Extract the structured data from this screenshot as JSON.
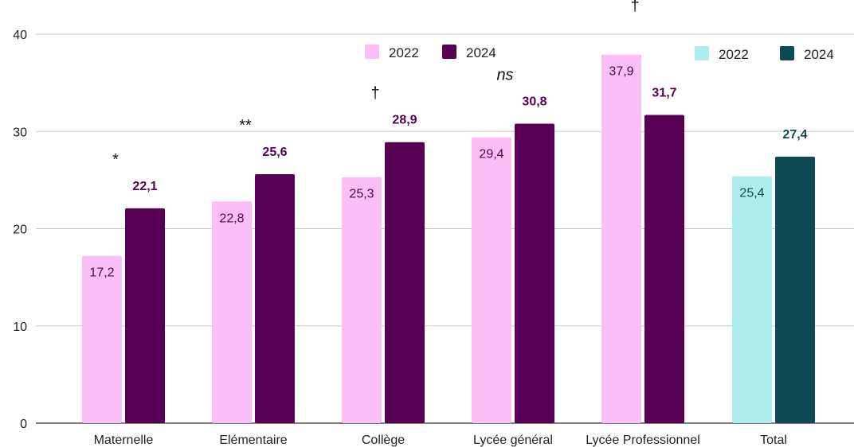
{
  "colors": {
    "pink_2022": "#f9bff6",
    "purple_2024": "#570054",
    "teal_2022": "#afecec",
    "teal_2024": "#0e4a52",
    "grid": "#c8c8c8",
    "axis": "#333333",
    "text": "#222222"
  },
  "chart_data": {
    "type": "bar",
    "categories": [
      "Maternelle",
      "Elémentaire",
      "Collège",
      "Lycée général",
      "Lycée Professionnel",
      "Total"
    ],
    "series": [
      {
        "name": "2022",
        "values": [
          17.2,
          22.8,
          25.3,
          29.4,
          37.9,
          25.4
        ]
      },
      {
        "name": "2024",
        "values": [
          22.1,
          25.6,
          28.9,
          30.8,
          31.7,
          27.4
        ]
      }
    ],
    "data_labels": {
      "2022": [
        "17,2",
        "22,8",
        "25,3",
        "29,4",
        "37,9",
        "25,4"
      ],
      "2024": [
        "22,1",
        "25,6",
        "28,9",
        "30,8",
        "31,7",
        "27,4"
      ]
    },
    "annotations": [
      "*",
      "**",
      "†",
      "ns",
      "†",
      ""
    ],
    "yticks": [
      "0",
      "10",
      "20",
      "30",
      "40"
    ],
    "ylim": [
      0,
      40
    ],
    "grid": true,
    "legends": [
      {
        "placement": "top-center",
        "entries": [
          {
            "label": "2022",
            "color": "#f9bff6"
          },
          {
            "label": "2024",
            "color": "#570054"
          }
        ]
      },
      {
        "placement": "top-right",
        "entries": [
          {
            "label": "2022",
            "color": "#afecec"
          },
          {
            "label": "2024",
            "color": "#0e4a52"
          }
        ]
      }
    ],
    "title": "",
    "xlabel": "",
    "ylabel": ""
  }
}
